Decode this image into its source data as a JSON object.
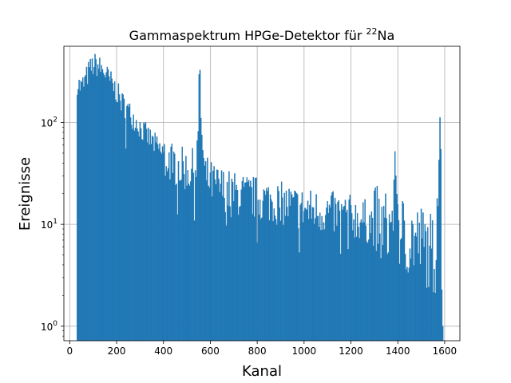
{
  "chart_data": {
    "type": "bar",
    "title": "Gammaspektrum HPGe-Detektor für ²²Na",
    "title_main": "Gammaspektrum HPGe-Detektor für ",
    "title_sup": "22",
    "title_tail": "Na",
    "xlabel": "Kanal",
    "ylabel": "Ereignisse",
    "xlim": [
      -25,
      1665
    ],
    "ylim": [
      0.72,
      560
    ],
    "yscale": "log",
    "grid": true,
    "color": "#1f77b4",
    "xticks": [
      0,
      200,
      400,
      600,
      800,
      1000,
      1200,
      1400,
      1600
    ],
    "xtick_labels": [
      "0",
      "200",
      "400",
      "600",
      "800",
      "1000",
      "1200",
      "1400",
      "1600"
    ],
    "yticks": [
      1,
      10,
      100
    ],
    "ytick_labels": [
      "10⁰",
      "10¹",
      "10²"
    ],
    "ytick_labels_parts": [
      {
        "base": "10",
        "exp": "0"
      },
      {
        "base": "10",
        "exp": "1"
      },
      {
        "base": "10",
        "exp": "2"
      }
    ],
    "series": [
      {
        "bin_width": 4,
        "x": [
          30,
          40,
          50,
          60,
          70,
          80,
          90,
          100,
          110,
          120,
          130,
          140,
          150,
          160,
          180,
          200,
          220,
          240,
          260,
          280,
          300,
          320,
          340,
          360,
          380,
          400,
          420,
          440,
          460,
          480,
          500,
          520,
          540,
          548,
          552,
          556,
          560,
          566,
          575,
          590,
          600,
          620,
          640,
          660,
          680,
          700,
          750,
          800,
          850,
          900,
          950,
          1000,
          1050,
          1100,
          1150,
          1200,
          1250,
          1300,
          1350,
          1380,
          1390,
          1395,
          1400,
          1410,
          1450,
          1500,
          1520,
          1540,
          1560,
          1570,
          1575,
          1580,
          1584,
          1588,
          1592
        ],
        "y": [
          250,
          230,
          220,
          240,
          270,
          310,
          340,
          360,
          370,
          360,
          340,
          330,
          310,
          280,
          240,
          200,
          160,
          140,
          120,
          105,
          90,
          78,
          70,
          62,
          55,
          48,
          44,
          40,
          38,
          35,
          34,
          33,
          38,
          85,
          230,
          300,
          120,
          60,
          30,
          28,
          26,
          24,
          23,
          22,
          21,
          20,
          19,
          18,
          17,
          16,
          15,
          14,
          13.5,
          13,
          12.5,
          12,
          11,
          10,
          9,
          12,
          40,
          50,
          15,
          8,
          7.5,
          6.5,
          6,
          5.5,
          4.5,
          30,
          40,
          95,
          70,
          2,
          1
        ]
      }
    ]
  }
}
